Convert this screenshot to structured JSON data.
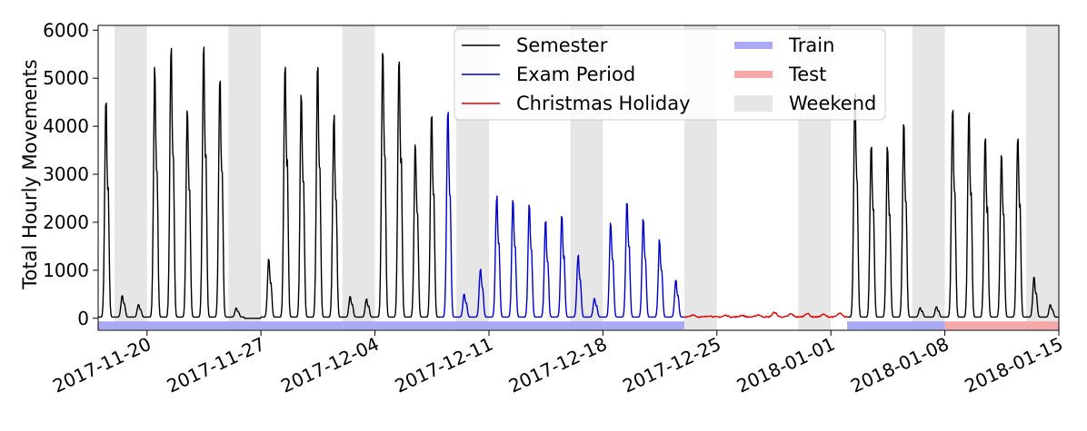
{
  "chart_data": {
    "type": "line",
    "title": "",
    "xlabel": "",
    "ylabel": "Total Hourly Movements",
    "xlim": [
      "2017-11-17",
      "2018-01-15"
    ],
    "ylim": [
      -250,
      6100
    ],
    "x_ticks": [
      "2017-11-20",
      "2017-11-27",
      "2017-12-04",
      "2017-12-11",
      "2017-12-18",
      "2017-12-25",
      "2018-01-01",
      "2018-01-08",
      "2018-01-15"
    ],
    "y_ticks": [
      0,
      1000,
      2000,
      3000,
      4000,
      5000,
      6000
    ],
    "grid": false,
    "legend_position": "top-center",
    "legend": [
      {
        "label": "Semester",
        "kind": "line",
        "color": "#000000"
      },
      {
        "label": "Exam Period",
        "kind": "line",
        "color": "#0000cc"
      },
      {
        "label": "Christmas Holiday",
        "kind": "line",
        "color": "#dd0000"
      },
      {
        "label": "Train",
        "kind": "band",
        "color": "#a9a9f5"
      },
      {
        "label": "Test",
        "kind": "band",
        "color": "#f5a9a9"
      },
      {
        "label": "Weekend",
        "kind": "shade",
        "color": "#e6e6e6"
      }
    ],
    "weekend_shading": [
      [
        "2017-11-18",
        "2017-11-20"
      ],
      [
        "2017-11-25",
        "2017-11-27"
      ],
      [
        "2017-12-02",
        "2017-12-04"
      ],
      [
        "2017-12-09",
        "2017-12-11"
      ],
      [
        "2017-12-16",
        "2017-12-18"
      ],
      [
        "2017-12-23",
        "2017-12-25"
      ],
      [
        "2017-12-30",
        "2018-01-01"
      ],
      [
        "2018-01-06",
        "2018-01-08"
      ],
      [
        "2018-01-13",
        "2018-01-15"
      ]
    ],
    "split_bands": [
      {
        "name": "Train",
        "start": "2017-11-17",
        "end": "2017-12-23",
        "color": "#a9a9f5"
      },
      {
        "name": "Train",
        "start": "2018-01-02",
        "end": "2018-01-08",
        "color": "#a9a9f5"
      },
      {
        "name": "Test",
        "start": "2018-01-08",
        "end": "2018-01-15",
        "color": "#f5a9a9"
      }
    ],
    "series": [
      {
        "name": "Semester",
        "color": "#000000",
        "period": [
          "2017-11-17",
          "2017-12-08"
        ],
        "daily_peaks": [
          [
            "2017-11-17",
            4700
          ],
          [
            "2017-11-18",
            500
          ],
          [
            "2017-11-19",
            300
          ],
          [
            "2017-11-20",
            5480
          ],
          [
            "2017-11-21",
            5920
          ],
          [
            "2017-11-22",
            4600
          ],
          [
            "2017-11-23",
            5900
          ],
          [
            "2017-11-24",
            5300
          ],
          [
            "2017-11-25",
            220
          ],
          [
            "2017-11-26",
            0
          ],
          [
            "2017-11-27",
            1290
          ],
          [
            "2017-11-28",
            5620
          ],
          [
            "2017-11-29",
            4820
          ],
          [
            "2017-11-30",
            5460
          ],
          [
            "2017-12-01",
            4400
          ],
          [
            "2017-12-02",
            480
          ],
          [
            "2017-12-03",
            420
          ],
          [
            "2017-12-04",
            5850
          ],
          [
            "2017-12-05",
            5760
          ],
          [
            "2017-12-06",
            3800
          ],
          [
            "2017-12-07",
            4400
          ]
        ]
      },
      {
        "name": "Exam Period",
        "color": "#0000cc",
        "period": [
          "2017-12-08",
          "2017-12-23"
        ],
        "daily_peaks": [
          [
            "2017-12-08",
            4530
          ],
          [
            "2017-12-09",
            540
          ],
          [
            "2017-12-10",
            1080
          ],
          [
            "2017-12-11",
            2680
          ],
          [
            "2017-12-12",
            2600
          ],
          [
            "2017-12-13",
            2450
          ],
          [
            "2017-12-14",
            2090
          ],
          [
            "2017-12-15",
            2200
          ],
          [
            "2017-12-16",
            1400
          ],
          [
            "2017-12-17",
            440
          ],
          [
            "2017-12-18",
            2060
          ],
          [
            "2017-12-19",
            2530
          ],
          [
            "2017-12-20",
            2180
          ],
          [
            "2017-12-21",
            1700
          ],
          [
            "2017-12-22",
            820
          ]
        ]
      },
      {
        "name": "Christmas Holiday",
        "color": "#dd0000",
        "period": [
          "2017-12-23",
          "2018-01-02"
        ],
        "daily_peaks": [
          [
            "2017-12-23",
            60
          ],
          [
            "2017-12-24",
            40
          ],
          [
            "2017-12-25",
            50
          ],
          [
            "2017-12-26",
            50
          ],
          [
            "2017-12-27",
            60
          ],
          [
            "2017-12-28",
            110
          ],
          [
            "2017-12-29",
            80
          ],
          [
            "2017-12-30",
            90
          ],
          [
            "2017-12-31",
            70
          ],
          [
            "2018-01-01",
            90
          ]
        ]
      },
      {
        "name": "Semester",
        "color": "#000000",
        "period": [
          "2018-01-02",
          "2018-01-15"
        ],
        "daily_peaks": [
          [
            "2018-01-02",
            5000
          ],
          [
            "2018-01-03",
            3870
          ],
          [
            "2018-01-04",
            3740
          ],
          [
            "2018-01-05",
            4250
          ],
          [
            "2018-01-06",
            230
          ],
          [
            "2018-01-07",
            250
          ],
          [
            "2018-01-08",
            4540
          ],
          [
            "2018-01-09",
            4470
          ],
          [
            "2018-01-10",
            3950
          ],
          [
            "2018-01-11",
            3650
          ],
          [
            "2018-01-12",
            4030
          ],
          [
            "2018-01-13",
            880
          ],
          [
            "2018-01-14",
            300
          ]
        ]
      }
    ]
  }
}
